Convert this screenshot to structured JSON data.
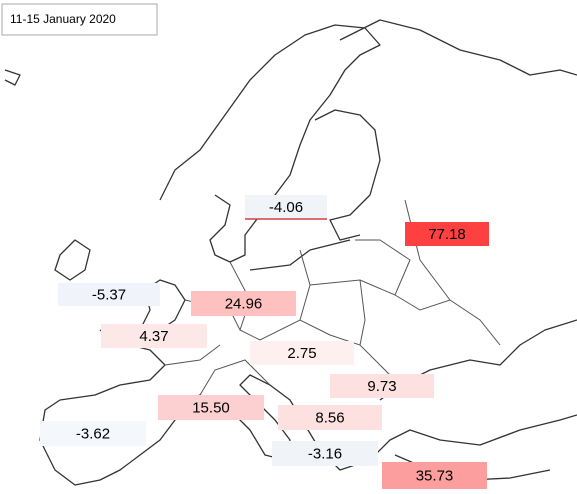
{
  "title": "11-15  January 2020",
  "labels": [
    {
      "text": "-4.06",
      "color": "#f0f4f8"
    },
    {
      "text": "77.18",
      "color": "#ff4040"
    },
    {
      "text": "-5.37",
      "color": "#f0f4fa"
    },
    {
      "text": "24.96",
      "color": "#ffc0c0"
    },
    {
      "text": "4.37",
      "color": "#fde8e8"
    },
    {
      "text": "2.75",
      "color": "#fff0f0"
    },
    {
      "text": "9.73",
      "color": "#fde0e0"
    },
    {
      "text": "15.50",
      "color": "#fcd0d0"
    },
    {
      "text": "8.56",
      "color": "#fde0e0"
    },
    {
      "text": "-3.62",
      "color": "#f4f8fc"
    },
    {
      "text": "-3.16",
      "color": "#f0f4f8"
    },
    {
      "text": "35.73",
      "color": "#fc9e9e"
    }
  ]
}
